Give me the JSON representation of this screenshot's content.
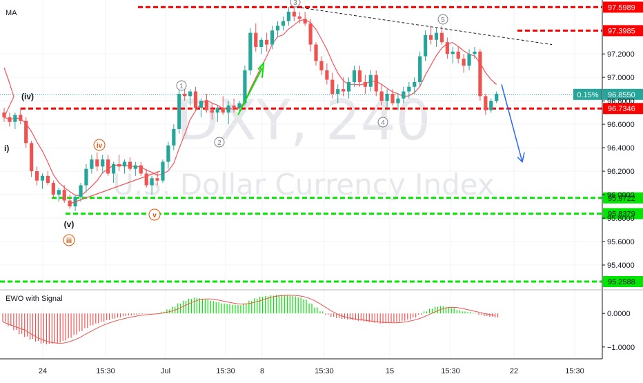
{
  "indicators": {
    "ma_label": "MA",
    "ewo_label": "EWO with Signal"
  },
  "watermark": {
    "symbol": "DXY, 240",
    "name": "U.S. Dollar Currency Index"
  },
  "chart_data": {
    "type": "line",
    "ylim": [
      95.2,
      97.66
    ],
    "yticks": [
      95.4,
      95.6,
      95.8,
      96.0,
      96.2,
      96.4,
      96.6,
      96.8,
      97.0,
      97.2
    ],
    "ytick_labels": [
      "95.4000",
      "95.6000",
      "95.8000",
      "96.0000",
      "96.2000",
      "96.4000",
      "96.6000",
      "96.8000",
      "97.0000",
      "97.2000"
    ],
    "xtick_labels": [
      "24",
      "15:30",
      "Jul",
      "15:30",
      "8",
      "15:30",
      "15",
      "15:30",
      "22",
      "15:30"
    ],
    "last_change": "0.15%",
    "price_levels": [
      {
        "label": "97.5989",
        "value": 97.5989,
        "color": "#ff0000"
      },
      {
        "label": "97.3985",
        "value": 97.3985,
        "color": "#ff0000"
      },
      {
        "label": "96.8550",
        "value": 96.855,
        "color": "#26a69a"
      },
      {
        "label": "96.7346",
        "value": 96.7346,
        "color": "#ff0000"
      },
      {
        "label": "95.9722",
        "value": 95.9722,
        "color": "#00e600"
      },
      {
        "label": "95.8379",
        "value": 95.8379,
        "color": "#00e600"
      },
      {
        "label": "95.2588",
        "value": 95.2588,
        "color": "#00e600"
      }
    ],
    "wave_labels": [
      {
        "text": "3",
        "style": "circle-gray"
      },
      {
        "text": "5",
        "style": "circle-gray"
      },
      {
        "text": "1",
        "style": "circle-gray"
      },
      {
        "text": "2",
        "style": "circle-gray"
      },
      {
        "text": "4",
        "style": "circle-gray"
      },
      {
        "text": "(iv)",
        "style": "plain-dark"
      },
      {
        "text": "i)",
        "style": "plain-dark"
      },
      {
        "text": "iv",
        "style": "circle-red"
      },
      {
        "text": "(v)",
        "style": "plain-dark"
      },
      {
        "text": "iii",
        "style": "circle-red"
      },
      {
        "text": "v",
        "style": "circle-red"
      }
    ],
    "candles": [
      [
        96.7,
        96.74,
        96.62,
        96.66
      ],
      [
        96.66,
        96.7,
        96.58,
        96.62
      ],
      [
        96.62,
        96.7,
        96.56,
        96.68
      ],
      [
        96.68,
        96.74,
        96.6,
        96.63
      ],
      [
        96.63,
        96.66,
        96.4,
        96.44
      ],
      [
        96.44,
        96.46,
        96.15,
        96.2
      ],
      [
        96.2,
        96.24,
        96.08,
        96.12
      ],
      [
        96.12,
        96.18,
        96.05,
        96.16
      ],
      [
        96.16,
        96.2,
        96.08,
        96.1
      ],
      [
        96.1,
        96.12,
        95.97,
        96.0
      ],
      [
        96.0,
        96.06,
        95.94,
        96.04
      ],
      [
        96.04,
        96.08,
        95.93,
        95.95
      ],
      [
        95.95,
        96.0,
        95.88,
        95.9
      ],
      [
        95.9,
        96.0,
        95.86,
        95.98
      ],
      [
        95.98,
        96.1,
        95.94,
        96.08
      ],
      [
        96.08,
        96.26,
        96.02,
        96.22
      ],
      [
        96.22,
        96.34,
        96.18,
        96.3
      ],
      [
        96.3,
        96.36,
        96.2,
        96.24
      ],
      [
        96.24,
        96.34,
        96.18,
        96.3
      ],
      [
        96.3,
        96.34,
        96.16,
        96.18
      ],
      [
        96.18,
        96.28,
        96.1,
        96.26
      ],
      [
        96.26,
        96.34,
        96.2,
        96.24
      ],
      [
        96.24,
        96.3,
        96.18,
        96.28
      ],
      [
        96.28,
        96.32,
        96.2,
        96.22
      ],
      [
        96.22,
        96.28,
        96.16,
        96.25
      ],
      [
        96.25,
        96.28,
        96.16,
        96.18
      ],
      [
        96.18,
        96.22,
        96.06,
        96.08
      ],
      [
        96.08,
        96.16,
        96.0,
        96.14
      ],
      [
        96.14,
        96.2,
        96.08,
        96.12
      ],
      [
        96.12,
        96.3,
        96.1,
        96.28
      ],
      [
        96.28,
        96.45,
        96.22,
        96.42
      ],
      [
        96.42,
        96.6,
        96.38,
        96.56
      ],
      [
        96.56,
        96.92,
        96.52,
        96.86
      ],
      [
        96.86,
        96.95,
        96.8,
        96.84
      ],
      [
        96.84,
        96.9,
        96.76,
        96.88
      ],
      [
        96.88,
        96.92,
        96.72,
        96.74
      ],
      [
        96.74,
        96.82,
        96.66,
        96.8
      ],
      [
        96.8,
        96.86,
        96.7,
        96.72
      ],
      [
        96.72,
        96.78,
        96.64,
        96.7
      ],
      [
        96.7,
        96.76,
        96.62,
        96.74
      ],
      [
        96.74,
        96.84,
        96.68,
        96.7
      ],
      [
        96.7,
        96.8,
        96.6,
        96.76
      ],
      [
        96.76,
        96.82,
        96.7,
        96.74
      ],
      [
        96.74,
        96.8,
        96.7,
        96.78
      ],
      [
        96.78,
        97.1,
        96.76,
        97.06
      ],
      [
        97.06,
        97.42,
        97.02,
        97.38
      ],
      [
        97.38,
        97.46,
        97.22,
        97.26
      ],
      [
        97.26,
        97.34,
        97.2,
        97.32
      ],
      [
        97.32,
        97.38,
        97.22,
        97.28
      ],
      [
        97.28,
        97.44,
        97.24,
        97.4
      ],
      [
        97.4,
        97.48,
        97.34,
        97.44
      ],
      [
        97.44,
        97.52,
        97.4,
        97.48
      ],
      [
        97.48,
        97.6,
        97.44,
        97.56
      ],
      [
        97.56,
        97.62,
        97.48,
        97.52
      ],
      [
        97.52,
        97.56,
        97.46,
        97.5
      ],
      [
        97.5,
        97.56,
        97.44,
        97.46
      ],
      [
        97.46,
        97.5,
        97.22,
        97.28
      ],
      [
        97.28,
        97.3,
        97.1,
        97.14
      ],
      [
        97.14,
        97.18,
        97.02,
        97.06
      ],
      [
        97.06,
        97.12,
        96.94,
        96.98
      ],
      [
        96.98,
        97.04,
        96.82,
        96.86
      ],
      [
        96.86,
        96.94,
        96.78,
        96.9
      ],
      [
        96.9,
        97.0,
        96.84,
        96.88
      ],
      [
        96.88,
        97.0,
        96.82,
        96.96
      ],
      [
        96.96,
        97.1,
        96.92,
        97.06
      ],
      [
        97.06,
        97.1,
        96.92,
        96.96
      ],
      [
        96.96,
        97.02,
        96.86,
        96.92
      ],
      [
        96.92,
        97.06,
        96.88,
        97.02
      ],
      [
        97.02,
        97.06,
        96.84,
        96.88
      ],
      [
        96.88,
        96.94,
        96.76,
        96.8
      ],
      [
        96.8,
        96.9,
        96.74,
        96.86
      ],
      [
        96.86,
        96.9,
        96.76,
        96.78
      ],
      [
        96.78,
        96.86,
        96.72,
        96.82
      ],
      [
        96.82,
        96.92,
        96.78,
        96.88
      ],
      [
        96.88,
        96.96,
        96.82,
        96.92
      ],
      [
        96.92,
        97.0,
        96.86,
        96.96
      ],
      [
        96.96,
        97.22,
        96.92,
        97.18
      ],
      [
        97.18,
        97.4,
        97.14,
        97.36
      ],
      [
        97.36,
        97.44,
        97.28,
        97.32
      ],
      [
        97.32,
        97.42,
        97.26,
        97.38
      ],
      [
        97.38,
        97.44,
        97.28,
        97.3
      ],
      [
        97.3,
        97.34,
        97.16,
        97.2
      ],
      [
        97.2,
        97.26,
        97.12,
        97.22
      ],
      [
        97.22,
        97.26,
        97.12,
        97.16
      ],
      [
        97.16,
        97.2,
        97.04,
        97.1
      ],
      [
        97.1,
        97.24,
        97.06,
        97.2
      ],
      [
        97.2,
        97.26,
        97.16,
        97.22
      ],
      [
        97.22,
        97.24,
        96.8,
        96.84
      ],
      [
        96.84,
        96.86,
        96.68,
        96.72
      ],
      [
        96.72,
        96.82,
        96.7,
        96.8
      ],
      [
        96.8,
        96.88,
        96.78,
        96.86
      ]
    ],
    "ewo": [
      -0.25,
      -0.38,
      -0.5,
      -0.62,
      -0.7,
      -0.78,
      -0.84,
      -0.9,
      -0.92,
      -0.9,
      -0.88,
      -0.82,
      -0.74,
      -0.64,
      -0.54,
      -0.44,
      -0.36,
      -0.3,
      -0.25,
      -0.2,
      -0.16,
      -0.12,
      -0.08,
      -0.06,
      -0.04,
      -0.02,
      -0.01,
      0.0,
      0.0,
      0.05,
      0.12,
      0.2,
      0.3,
      0.38,
      0.44,
      0.47,
      0.45,
      0.42,
      0.38,
      0.34,
      0.3,
      0.28,
      0.26,
      0.25,
      0.3,
      0.38,
      0.45,
      0.5,
      0.52,
      0.54,
      0.55,
      0.55,
      0.54,
      0.52,
      0.48,
      0.42,
      0.3,
      0.18,
      0.06,
      -0.04,
      -0.1,
      -0.14,
      -0.16,
      -0.18,
      -0.2,
      -0.22,
      -0.24,
      -0.26,
      -0.28,
      -0.3,
      -0.29,
      -0.27,
      -0.25,
      -0.22,
      -0.18,
      -0.12,
      -0.04,
      0.06,
      0.14,
      0.2,
      0.22,
      0.2,
      0.16,
      0.1,
      0.06,
      0.04,
      0.02,
      -0.04,
      -0.08,
      -0.1,
      -0.12
    ],
    "ewo_yticks": [
      0.0,
      -1.0
    ],
    "ewo_ytick_labels": [
      "0.0000",
      "−1.0000"
    ]
  }
}
